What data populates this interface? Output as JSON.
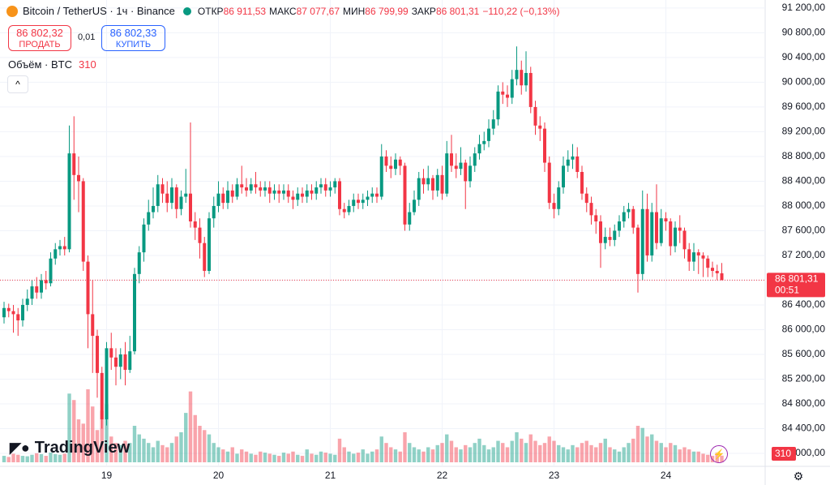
{
  "header": {
    "symbol": "Bitcoin / TetherUS · 1ч · Binance",
    "ohlc": [
      {
        "label": "ОТКР",
        "value": "86 911,53"
      },
      {
        "label": "МАКС",
        "value": "87 077,67"
      },
      {
        "label": "МИН",
        "value": "86 799,99"
      },
      {
        "label": "ЗАКР",
        "value": "86 801,31"
      }
    ],
    "change": "−110,22 (−0,13%)"
  },
  "trade": {
    "sell_price": "86 802,32",
    "sell_label": "ПРОДАТЬ",
    "spread": "0,01",
    "buy_price": "86 802,33",
    "buy_label": "КУПИТЬ"
  },
  "volume_legend": {
    "label": "Объём · BTC",
    "value": "310"
  },
  "logo": "TradingView",
  "chart_data": {
    "type": "candlestick",
    "categories": [
      null,
      null,
      null,
      null,
      null,
      null,
      null,
      null,
      null,
      null,
      null,
      null,
      null,
      null,
      null,
      null,
      null,
      null,
      null,
      null,
      null,
      null,
      "19",
      null,
      null,
      null,
      null,
      null,
      null,
      null,
      null,
      null,
      null,
      null,
      null,
      null,
      null,
      null,
      null,
      null,
      null,
      null,
      null,
      null,
      null,
      null,
      "20",
      null,
      null,
      null,
      null,
      null,
      null,
      null,
      null,
      null,
      null,
      null,
      null,
      null,
      null,
      null,
      null,
      null,
      null,
      null,
      null,
      null,
      null,
      null,
      "21",
      null,
      null,
      null,
      null,
      null,
      null,
      null,
      null,
      null,
      null,
      null,
      null,
      null,
      null,
      null,
      null,
      null,
      null,
      null,
      null,
      null,
      null,
      null,
      "22",
      null,
      null,
      null,
      null,
      null,
      null,
      null,
      null,
      null,
      null,
      null,
      null,
      null,
      null,
      null,
      null,
      null,
      null,
      null,
      null,
      null,
      null,
      null,
      "23",
      null,
      null,
      null,
      null,
      null,
      null,
      null,
      null,
      null,
      null,
      null,
      null,
      null,
      null,
      null,
      null,
      null,
      null,
      null,
      null,
      null,
      null,
      null,
      "24",
      null,
      null,
      null,
      null,
      null,
      null,
      null,
      null,
      null,
      null,
      null,
      null
    ],
    "open": [
      86200,
      86350,
      86300,
      86250,
      86150,
      86400,
      86500,
      86700,
      86600,
      86800,
      86750,
      87150,
      87300,
      87350,
      87300,
      88850,
      88500,
      88400,
      87100,
      86250,
      85900,
      85300,
      84550,
      85700,
      85550,
      85400,
      85600,
      85350,
      85650,
      86900,
      87250,
      87700,
      87900,
      88000,
      88350,
      88200,
      88050,
      88300,
      87950,
      88150,
      88200,
      87750,
      87650,
      87400,
      86950,
      87800,
      88000,
      88200,
      88050,
      88250,
      88150,
      88350,
      88300,
      88250,
      88350,
      88300,
      88250,
      88300,
      88200,
      88250,
      88200,
      88250,
      88150,
      88100,
      88200,
      88150,
      88250,
      88200,
      88300,
      88350,
      88250,
      88300,
      88400,
      87950,
      87900,
      88000,
      88100,
      88050,
      88100,
      88150,
      88200,
      88150,
      88800,
      88650,
      88600,
      88750,
      88650,
      87700,
      87900,
      88100,
      88450,
      88350,
      88450,
      88250,
      88500,
      88200,
      88850,
      88650,
      88600,
      88700,
      88400,
      88650,
      88850,
      89000,
      89050,
      89250,
      89400,
      89850,
      89800,
      89750,
      90050,
      90200,
      89950,
      90150,
      89600,
      89300,
      89250,
      88700,
      88050,
      87950,
      88300,
      88650,
      88750,
      88800,
      88550,
      88200,
      88050,
      87850,
      87750,
      87400,
      87500,
      87450,
      87600,
      87750,
      87900,
      87950,
      87650,
      86900,
      87950,
      87200,
      87900,
      87400,
      87800,
      87750,
      87350,
      87650,
      87600,
      87300,
      87100,
      87250,
      87200,
      87150,
      87000,
      86950,
      86911.53
    ],
    "high": [
      86450,
      86420,
      86400,
      86350,
      86500,
      86650,
      86800,
      86850,
      86900,
      86950,
      87250,
      87400,
      87450,
      87500,
      89300,
      89450,
      88800,
      88450,
      87200,
      86800,
      86000,
      85400,
      85800,
      85950,
      85700,
      85700,
      85800,
      85900,
      87000,
      87350,
      87800,
      88100,
      88300,
      88500,
      88450,
      88400,
      88450,
      88350,
      88250,
      88600,
      89350,
      87900,
      87800,
      87500,
      87900,
      88150,
      88400,
      88300,
      88400,
      88350,
      88450,
      88650,
      88450,
      88450,
      88550,
      88400,
      88400,
      88400,
      88350,
      88350,
      88350,
      88350,
      88250,
      88300,
      88300,
      88350,
      88350,
      88400,
      88450,
      88450,
      88400,
      88450,
      88450,
      88050,
      88100,
      88200,
      88200,
      88200,
      88250,
      88300,
      88300,
      89000,
      88900,
      88800,
      88850,
      88800,
      88700,
      88050,
      88250,
      88550,
      88600,
      88650,
      88500,
      88600,
      88650,
      89050,
      89150,
      88850,
      88950,
      88750,
      88800,
      88950,
      89150,
      89200,
      89400,
      89550,
      89950,
      90000,
      89950,
      90200,
      90580,
      90350,
      90500,
      90250,
      89700,
      89450,
      89350,
      88800,
      88200,
      88400,
      88800,
      88900,
      89000,
      88950,
      88650,
      88300,
      88150,
      87950,
      87850,
      87650,
      87650,
      87700,
      87850,
      88000,
      88050,
      88000,
      87700,
      88250,
      88200,
      88050,
      88350,
      87950,
      87900,
      87800,
      87750,
      87850,
      87650,
      87400,
      87400,
      87300,
      87250,
      87200,
      87100,
      87050,
      87077.67
    ],
    "low": [
      86100,
      86200,
      85950,
      85900,
      86050,
      86300,
      86400,
      86500,
      86500,
      86650,
      86700,
      87050,
      87200,
      87200,
      87250,
      88100,
      87900,
      86950,
      85700,
      85300,
      84900,
      84400,
      84450,
      85350,
      85100,
      85200,
      85100,
      85300,
      85600,
      86750,
      87100,
      87600,
      87800,
      87900,
      88050,
      87900,
      87950,
      87800,
      87850,
      88050,
      87650,
      87450,
      87150,
      86850,
      86900,
      87650,
      87900,
      87950,
      87950,
      88050,
      88100,
      88200,
      88150,
      88200,
      88200,
      88150,
      88150,
      88050,
      88100,
      88050,
      88100,
      88050,
      87950,
      88000,
      88050,
      88050,
      88100,
      88100,
      88200,
      88150,
      88150,
      88200,
      87850,
      87800,
      87850,
      87900,
      87950,
      87950,
      88000,
      88050,
      88050,
      88100,
      88550,
      88450,
      88500,
      88500,
      87600,
      87600,
      87850,
      88000,
      88200,
      88250,
      88100,
      88150,
      88100,
      88150,
      88550,
      88450,
      88500,
      87950,
      88300,
      88550,
      88750,
      88900,
      88950,
      89150,
      89300,
      89650,
      89600,
      89650,
      89950,
      89800,
      89850,
      89500,
      89150,
      89050,
      88550,
      87950,
      87800,
      87850,
      88200,
      88550,
      88600,
      88450,
      88100,
      87900,
      87700,
      87550,
      87000,
      87300,
      87350,
      87350,
      87500,
      87650,
      87800,
      87550,
      86600,
      86800,
      87100,
      87100,
      87300,
      87350,
      87600,
      87200,
      87250,
      87400,
      87150,
      86950,
      86950,
      86900,
      86850,
      86850,
      86850,
      86800,
      86799.99
    ],
    "close": [
      86350,
      86300,
      86250,
      86150,
      86400,
      86500,
      86700,
      86600,
      86800,
      86750,
      87150,
      87300,
      87350,
      87300,
      88850,
      88500,
      88400,
      87100,
      86250,
      85900,
      85300,
      84550,
      85700,
      85550,
      85400,
      85600,
      85350,
      85650,
      86900,
      87250,
      87700,
      87900,
      88000,
      88350,
      88200,
      88050,
      88300,
      87950,
      88150,
      88200,
      87750,
      87650,
      87400,
      86950,
      87800,
      88000,
      88200,
      88050,
      88250,
      88150,
      88350,
      88300,
      88250,
      88350,
      88300,
      88250,
      88300,
      88200,
      88250,
      88200,
      88250,
      88150,
      88100,
      88200,
      88150,
      88250,
      88200,
      88300,
      88350,
      88250,
      88300,
      88400,
      87950,
      87900,
      88000,
      88100,
      88050,
      88100,
      88150,
      88200,
      88150,
      88800,
      88650,
      88600,
      88750,
      88650,
      87700,
      87900,
      88100,
      88450,
      88350,
      88450,
      88250,
      88500,
      88200,
      88850,
      88650,
      88600,
      88700,
      88400,
      88650,
      88850,
      89000,
      89050,
      89250,
      89400,
      89850,
      89800,
      89750,
      90050,
      90200,
      89950,
      90150,
      89600,
      89300,
      89250,
      88700,
      88050,
      87950,
      88300,
      88650,
      88750,
      88800,
      88550,
      88200,
      88050,
      87850,
      87750,
      87400,
      87500,
      87450,
      87600,
      87750,
      87900,
      87950,
      87650,
      86900,
      87950,
      87200,
      87900,
      87400,
      87800,
      87750,
      87350,
      87650,
      87600,
      87300,
      87100,
      87250,
      87200,
      87150,
      87000,
      86950,
      86911.53,
      86801.31
    ],
    "volume": [
      300,
      250,
      400,
      350,
      300,
      280,
      350,
      420,
      380,
      300,
      450,
      380,
      350,
      400,
      3200,
      2900,
      2000,
      1800,
      3400,
      2600,
      1500,
      2400,
      2700,
      1200,
      900,
      800,
      1000,
      900,
      1700,
      1300,
      1100,
      900,
      700,
      1000,
      800,
      700,
      900,
      1200,
      1400,
      2300,
      3300,
      2200,
      1700,
      1500,
      1300,
      900,
      700,
      600,
      500,
      700,
      400,
      600,
      500,
      400,
      350,
      500,
      450,
      400,
      350,
      300,
      450,
      400,
      500,
      350,
      300,
      600,
      400,
      350,
      500,
      450,
      400,
      350,
      1100,
      700,
      500,
      400,
      450,
      600,
      400,
      500,
      600,
      1200,
      900,
      700,
      600,
      500,
      1400,
      900,
      700,
      600,
      500,
      700,
      600,
      800,
      900,
      1300,
      1000,
      700,
      600,
      800,
      700,
      900,
      1100,
      800,
      600,
      700,
      1000,
      900,
      700,
      1000,
      1400,
      1100,
      900,
      1300,
      1000,
      800,
      900,
      1200,
      1000,
      800,
      700,
      600,
      800,
      700,
      900,
      1000,
      800,
      700,
      900,
      1100,
      700,
      600,
      500,
      700,
      900,
      1100,
      1700,
      1600,
      1200,
      1300,
      1000,
      900,
      700,
      900,
      800,
      600,
      700,
      600,
      500,
      500,
      400,
      350,
      300,
      450,
      310
    ],
    "up_color": "#089981",
    "down_color": "#f23645",
    "ylim": [
      83790,
      91330
    ],
    "yticks": [
      {
        "value": 84000,
        "label": "84 000,00"
      },
      {
        "value": 84400,
        "label": "84 400,00"
      },
      {
        "value": 84800,
        "label": "84 800,00"
      },
      {
        "value": 85200,
        "label": "85 200,00"
      },
      {
        "value": 85600,
        "label": "85 600,00"
      },
      {
        "value": 86000,
        "label": "86 000,00"
      },
      {
        "value": 86400,
        "label": "86 400,00"
      },
      {
        "value": 86800,
        "label": "86 800,00"
      },
      {
        "value": 87200,
        "label": "87 200,00"
      },
      {
        "value": 87600,
        "label": "87 600,00"
      },
      {
        "value": 88000,
        "label": "88 000,00"
      },
      {
        "value": 88400,
        "label": "88 400,00"
      },
      {
        "value": 88800,
        "label": "88 800,00"
      },
      {
        "value": 89200,
        "label": "89 200,00"
      },
      {
        "value": 89600,
        "label": "89 600,00"
      },
      {
        "value": 90000,
        "label": "90 000,00"
      },
      {
        "value": 90400,
        "label": "90 400,00"
      },
      {
        "value": 90800,
        "label": "90 800,00"
      },
      {
        "value": 91200,
        "label": "91 200,00"
      }
    ],
    "last_price_label": "86 801,31",
    "countdown": "00:51",
    "grid": true
  }
}
